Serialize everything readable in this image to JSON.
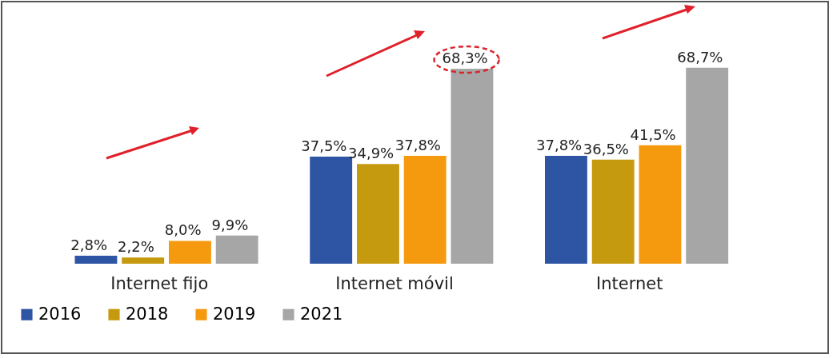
{
  "chart_data": {
    "type": "bar",
    "categories": [
      "Internet fijo",
      "Internet móvil",
      "Internet"
    ],
    "series": [
      {
        "name": "2016",
        "color": "#2e54a4",
        "values": [
          2.8,
          37.5,
          37.8
        ],
        "value_labels": [
          "2,8%",
          "37,5%",
          "37,8%"
        ]
      },
      {
        "name": "2018",
        "color": "#c59a0e",
        "values": [
          2.2,
          34.9,
          36.5
        ],
        "value_labels": [
          "2,2%",
          "34,9%",
          "36,5%"
        ]
      },
      {
        "name": "2019",
        "color": "#f59a0f",
        "values": [
          8.0,
          37.8,
          41.5
        ],
        "value_labels": [
          "8,0%",
          "37,8%",
          "41,5%"
        ]
      },
      {
        "name": "2021",
        "color": "#a6a6a6",
        "values": [
          9.9,
          68.3,
          68.7
        ],
        "value_labels": [
          "9,9%",
          "68,3%",
          "68,7%"
        ]
      }
    ],
    "legend": "bottom",
    "tick_labels": "x"
  }
}
